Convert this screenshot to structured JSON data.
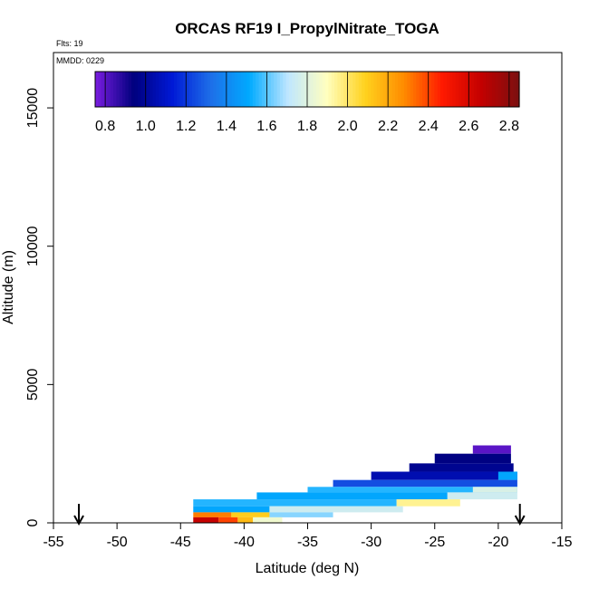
{
  "chart_data": {
    "type": "heatmap",
    "title": "ORCAS RF19 I_PropylNitrate_TOGA",
    "note_flights": "Flts: 19",
    "note_date": "MMDD: 0229",
    "xlabel": "Latitude (deg N)",
    "ylabel": "Altitude (m)",
    "xlim": [
      -55,
      -15
    ],
    "ylim": [
      0,
      17000
    ],
    "x_ticks": [
      -55,
      -50,
      -45,
      -40,
      -35,
      -30,
      -25,
      -20,
      -15
    ],
    "x_tick_labels": [
      "-55",
      "-50",
      "-45",
      "-40",
      "-35",
      "-30",
      "-25",
      "-20",
      "-15"
    ],
    "y_ticks": [
      0,
      5000,
      10000,
      15000
    ],
    "y_tick_labels": [
      "0",
      "5000",
      "10000",
      "15000"
    ],
    "colorbar": {
      "range": [
        0.75,
        2.85
      ],
      "ticks": [
        0.8,
        1.0,
        1.2,
        1.4,
        1.6,
        1.8,
        2.0,
        2.2,
        2.4,
        2.6,
        2.8
      ],
      "tick_labels": [
        "0.8",
        "1.0",
        "1.2",
        "1.4",
        "1.6",
        "1.8",
        "2.0",
        "2.2",
        "2.4",
        "2.6",
        "2.8"
      ],
      "colors": [
        "#7a1de0",
        "#00007e",
        "#0019d6",
        "#1e6fe8",
        "#00aaff",
        "#bfe6ff",
        "#ffffc0",
        "#ffd21e",
        "#ff8c00",
        "#ff1a00",
        "#c40000",
        "#7a1010"
      ]
    },
    "arrows_lat": [
      -53,
      -18.3
    ],
    "cells": [
      {
        "lat0": -22,
        "lat1": -19,
        "alt0": 2500,
        "alt1": 2800,
        "v": 0.8
      },
      {
        "lat0": -25,
        "lat1": -19,
        "alt0": 2150,
        "alt1": 2500,
        "v": 0.95
      },
      {
        "lat0": -27,
        "lat1": -18.8,
        "alt0": 1850,
        "alt1": 2150,
        "v": 0.98
      },
      {
        "lat0": -30,
        "lat1": -18.5,
        "alt0": 1550,
        "alt1": 1850,
        "v": 1.05
      },
      {
        "lat0": -20,
        "lat1": -18.5,
        "alt0": 1550,
        "alt1": 1850,
        "v": 1.5
      },
      {
        "lat0": -33,
        "lat1": -18.5,
        "alt0": 1300,
        "alt1": 1550,
        "v": 1.25
      },
      {
        "lat0": -35,
        "lat1": -18.5,
        "alt0": 1100,
        "alt1": 1300,
        "v": 1.55
      },
      {
        "lat0": -22,
        "lat1": -18.5,
        "alt0": 1100,
        "alt1": 1300,
        "v": 1.78
      },
      {
        "lat0": -39,
        "lat1": -24,
        "alt0": 850,
        "alt1": 1100,
        "v": 1.5
      },
      {
        "lat0": -24,
        "lat1": -18.5,
        "alt0": 850,
        "alt1": 1100,
        "v": 1.75
      },
      {
        "lat0": -44,
        "lat1": -28,
        "alt0": 600,
        "alt1": 850,
        "v": 1.55
      },
      {
        "lat0": -28,
        "lat1": -23,
        "alt0": 600,
        "alt1": 850,
        "v": 1.95
      },
      {
        "lat0": -44,
        "lat1": -38,
        "alt0": 380,
        "alt1": 600,
        "v": 1.5
      },
      {
        "lat0": -38,
        "lat1": -27.5,
        "alt0": 380,
        "alt1": 600,
        "v": 1.75
      },
      {
        "lat0": -44,
        "lat1": -41,
        "alt0": 200,
        "alt1": 380,
        "v": 2.3
      },
      {
        "lat0": -41,
        "lat1": -38,
        "alt0": 200,
        "alt1": 380,
        "v": 2.1
      },
      {
        "lat0": -38,
        "lat1": -33,
        "alt0": 200,
        "alt1": 380,
        "v": 1.65
      },
      {
        "lat0": -44,
        "lat1": -42,
        "alt0": 0,
        "alt1": 200,
        "v": 2.65
      },
      {
        "lat0": -42,
        "lat1": -40.5,
        "alt0": 0,
        "alt1": 200,
        "v": 2.4
      },
      {
        "lat0": -40.5,
        "lat1": -39.3,
        "alt0": 0,
        "alt1": 200,
        "v": 2.15
      },
      {
        "lat0": -39.3,
        "lat1": -37,
        "alt0": 0,
        "alt1": 200,
        "v": 1.85
      }
    ]
  }
}
